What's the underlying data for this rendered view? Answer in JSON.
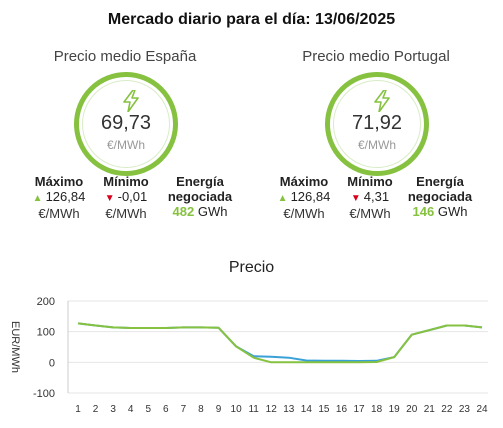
{
  "title": "Mercado diario para el día: 13/06/2025",
  "markets": [
    {
      "name": "Precio medio España",
      "avg_price": "69,73",
      "unit": "€/MWh",
      "max_label": "Máximo",
      "max_value": "126,84",
      "min_label": "Mínimo",
      "min_value": "-0,01",
      "price_unit": "€/MWh",
      "energy_label_1": "Energía",
      "energy_label_2": "negociada",
      "energy_value": "482",
      "energy_unit": "GWh"
    },
    {
      "name": "Precio medio Portugal",
      "avg_price": "71,92",
      "unit": "€/MWh",
      "max_label": "Máximo",
      "max_value": "126,84",
      "min_label": "Mínimo",
      "min_value": "4,31",
      "price_unit": "€/MWh",
      "energy_label_1": "Energía",
      "energy_label_2": "negociada",
      "energy_value": "146",
      "energy_unit": "GWh"
    }
  ],
  "colors": {
    "accent_green": "#86c240",
    "spain_line": "#86c240",
    "portugal_line": "#3aa0d8",
    "down_red": "#d9001b"
  },
  "icons": [
    "lightning-bolt-icon",
    "triangle-up-icon",
    "triangle-down-icon"
  ],
  "chart_data": {
    "type": "line",
    "title": "Precio",
    "ylabel": "EUR/MWh",
    "ylim": [
      -100,
      200
    ],
    "yticks": [
      200,
      100,
      0,
      -100
    ],
    "x": [
      1,
      2,
      3,
      4,
      5,
      6,
      7,
      8,
      9,
      10,
      11,
      12,
      13,
      14,
      15,
      16,
      17,
      18,
      19,
      20,
      21,
      22,
      23,
      24
    ],
    "grid": "horizontal",
    "series": [
      {
        "color": "#86c240",
        "values": [
          126.84,
          120,
          114,
          112,
          112,
          112,
          114,
          114,
          113,
          52,
          15,
          0,
          -0.01,
          0,
          0,
          0,
          0,
          1,
          17,
          90,
          105,
          120,
          120,
          114
        ]
      },
      {
        "color": "#3aa0d8",
        "values": [
          126.84,
          120,
          114,
          112,
          112,
          112,
          114,
          114,
          113,
          52,
          20,
          18,
          15,
          6,
          5,
          5,
          4.31,
          5,
          17,
          90,
          105,
          120,
          120,
          114
        ]
      }
    ]
  }
}
